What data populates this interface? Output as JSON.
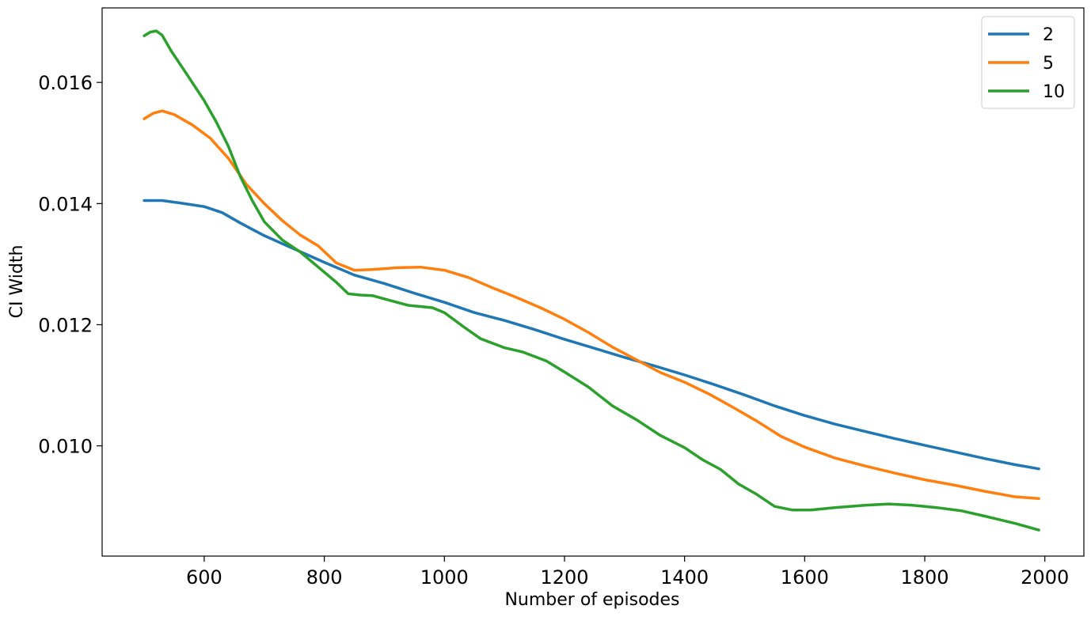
{
  "chart_data": {
    "type": "line",
    "title": "",
    "xlabel": "Number of episodes",
    "ylabel": "CI Width",
    "xlim": [
      430,
      2065
    ],
    "ylim": [
      0.00818,
      0.01723
    ],
    "xticks": [
      600,
      800,
      1000,
      1200,
      1400,
      1600,
      1800,
      2000
    ],
    "yticks": [
      0.01,
      0.012,
      0.014,
      0.016
    ],
    "xtick_labels": [
      "600",
      "800",
      "1000",
      "1200",
      "1400",
      "1600",
      "1800",
      "2000"
    ],
    "ytick_labels": [
      "0.010",
      "0.012",
      "0.014",
      "0.016"
    ],
    "grid": false,
    "legend_position": "top-right",
    "series": [
      {
        "name": "2",
        "color": "#1f77b4",
        "x": [
          500,
          530,
          560,
          600,
          630,
          660,
          700,
          750,
          800,
          850,
          900,
          950,
          1000,
          1050,
          1100,
          1150,
          1200,
          1250,
          1300,
          1350,
          1400,
          1450,
          1500,
          1550,
          1600,
          1650,
          1700,
          1750,
          1800,
          1850,
          1900,
          1950,
          1990
        ],
        "values": [
          0.01405,
          0.01405,
          0.01401,
          0.01395,
          0.01385,
          0.01368,
          0.01347,
          0.01325,
          0.01303,
          0.01282,
          0.01268,
          0.01252,
          0.01237,
          0.0122,
          0.01207,
          0.01192,
          0.01176,
          0.01161,
          0.01146,
          0.01132,
          0.01117,
          0.01101,
          0.01084,
          0.01066,
          0.0105,
          0.01036,
          0.01024,
          0.01012,
          0.01001,
          0.0099,
          0.00979,
          0.00969,
          0.00962
        ]
      },
      {
        "name": "5",
        "color": "#ff7f0e",
        "x": [
          500,
          515,
          530,
          550,
          580,
          610,
          640,
          670,
          700,
          730,
          760,
          790,
          820,
          850,
          880,
          920,
          960,
          1000,
          1040,
          1080,
          1120,
          1160,
          1200,
          1240,
          1280,
          1320,
          1360,
          1400,
          1440,
          1480,
          1520,
          1560,
          1600,
          1650,
          1700,
          1750,
          1800,
          1850,
          1900,
          1950,
          1990
        ],
        "values": [
          0.0154,
          0.01549,
          0.01553,
          0.01547,
          0.0153,
          0.01508,
          0.01475,
          0.01432,
          0.014,
          0.01372,
          0.01348,
          0.0133,
          0.01302,
          0.0129,
          0.01291,
          0.01294,
          0.01295,
          0.0129,
          0.01278,
          0.01261,
          0.01245,
          0.01228,
          0.01209,
          0.01187,
          0.01163,
          0.01142,
          0.01121,
          0.01105,
          0.01086,
          0.01064,
          0.01041,
          0.01016,
          0.00998,
          0.0098,
          0.00967,
          0.00955,
          0.00944,
          0.00935,
          0.00925,
          0.00916,
          0.00913
        ]
      },
      {
        "name": "10",
        "color": "#2ca02c",
        "x": [
          500,
          510,
          520,
          530,
          545,
          570,
          600,
          620,
          640,
          660,
          680,
          700,
          730,
          760,
          790,
          820,
          840,
          860,
          880,
          910,
          940,
          980,
          1000,
          1030,
          1060,
          1100,
          1130,
          1170,
          1200,
          1240,
          1280,
          1320,
          1360,
          1400,
          1430,
          1460,
          1490,
          1520,
          1550,
          1580,
          1610,
          1650,
          1700,
          1740,
          1780,
          1820,
          1860,
          1900,
          1950,
          1990
        ],
        "values": [
          0.01677,
          0.01683,
          0.01685,
          0.01678,
          0.01652,
          0.01615,
          0.0157,
          0.01535,
          0.01495,
          0.01445,
          0.01405,
          0.0137,
          0.0134,
          0.0132,
          0.01295,
          0.0127,
          0.01251,
          0.01249,
          0.01248,
          0.0124,
          0.01232,
          0.01228,
          0.0122,
          0.01198,
          0.01177,
          0.01162,
          0.01155,
          0.0114,
          0.01122,
          0.01097,
          0.01066,
          0.01043,
          0.01017,
          0.00997,
          0.00977,
          0.00961,
          0.00937,
          0.0092,
          0.009,
          0.00894,
          0.00894,
          0.00898,
          0.00902,
          0.00904,
          0.00902,
          0.00898,
          0.00893,
          0.00884,
          0.00872,
          0.00861
        ]
      }
    ]
  }
}
